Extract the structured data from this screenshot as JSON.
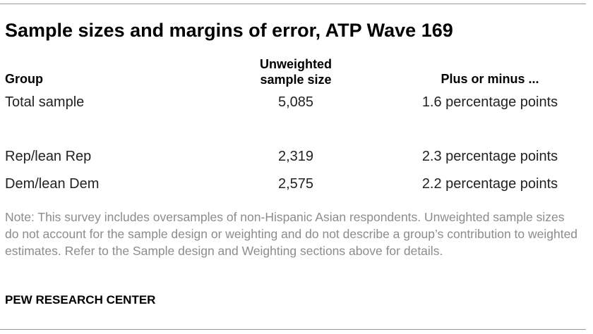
{
  "title": "Sample sizes and margins of error, ATP Wave 169",
  "headers": {
    "group": "Group",
    "sample_size_line1": "Unweighted",
    "sample_size_line2": "sample size",
    "moe": "Plus or minus ..."
  },
  "rows": [
    {
      "group": "Total sample",
      "size": "5,085",
      "moe": "1.6 percentage points"
    },
    {
      "group": "Rep/lean Rep",
      "size": "2,319",
      "moe": "2.3 percentage points"
    },
    {
      "group": "Dem/lean Dem",
      "size": "2,575",
      "moe": "2.2 percentage points"
    }
  ],
  "note": "Note: This survey includes oversamples of non-Hispanic Asian respondents. Unweighted sample sizes do not account for the sample design or weighting and do not describe a group’s contribution to weighted estimates. Refer to the Sample design and Weighting sections above for details.",
  "source": "PEW RESEARCH CENTER"
}
